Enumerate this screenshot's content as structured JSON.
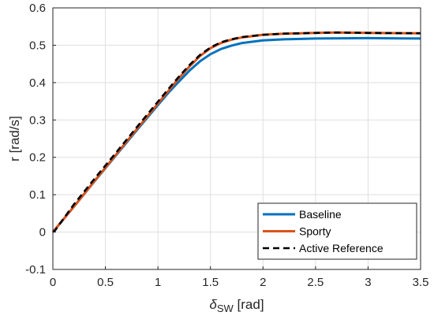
{
  "chart_data": {
    "type": "line",
    "xlabel_symbol": "δ",
    "xlabel_sub": "SW",
    "xlabel_unit": " [rad]",
    "ylabel": "r [rad/s]",
    "xlim": [
      0,
      3.5
    ],
    "ylim": [
      -0.1,
      0.6
    ],
    "xticks": [
      0,
      0.5,
      1,
      1.5,
      2,
      2.5,
      3,
      3.5
    ],
    "yticks": [
      -0.1,
      0,
      0.1,
      0.2,
      0.3,
      0.4,
      0.5,
      0.6
    ],
    "xtick_labels": [
      "0",
      "0.5",
      "1",
      "1.5",
      "2",
      "2.5",
      "3",
      "3.5"
    ],
    "ytick_labels": [
      "-0.1",
      "0",
      "0.1",
      "0.2",
      "0.3",
      "0.4",
      "0.5",
      "0.6"
    ],
    "grid": true,
    "legend_position": "bottom-right",
    "series": [
      {
        "name": "Baseline",
        "color": "#0072BD",
        "style": "solid",
        "x": [
          0,
          0.2,
          0.4,
          0.6,
          0.8,
          1.0,
          1.1,
          1.2,
          1.3,
          1.4,
          1.5,
          1.6,
          1.7,
          1.8,
          2.0,
          2.2,
          2.5,
          3.0,
          3.5
        ],
        "y": [
          0,
          0.068,
          0.137,
          0.205,
          0.273,
          0.34,
          0.373,
          0.403,
          0.432,
          0.457,
          0.476,
          0.49,
          0.499,
          0.506,
          0.513,
          0.516,
          0.518,
          0.519,
          0.518
        ]
      },
      {
        "name": "Sporty",
        "color": "#D95319",
        "style": "solid",
        "x": [
          0,
          0.2,
          0.4,
          0.6,
          0.8,
          1.0,
          1.1,
          1.2,
          1.3,
          1.4,
          1.5,
          1.6,
          1.7,
          1.8,
          2.0,
          2.2,
          2.5,
          2.7,
          3.0,
          3.5
        ],
        "y": [
          0,
          0.068,
          0.138,
          0.207,
          0.276,
          0.344,
          0.378,
          0.412,
          0.443,
          0.471,
          0.492,
          0.506,
          0.515,
          0.521,
          0.528,
          0.531,
          0.533,
          0.534,
          0.533,
          0.532
        ]
      },
      {
        "name": "Active Reference",
        "color": "#000000",
        "style": "dashed",
        "x": [
          0,
          0.02,
          0.2,
          0.4,
          0.6,
          0.8,
          1.0,
          1.1,
          1.2,
          1.3,
          1.4,
          1.5,
          1.6,
          1.7,
          1.8,
          2.0,
          2.2,
          2.5,
          2.7,
          3.0,
          3.5
        ],
        "y": [
          0,
          0.004,
          0.074,
          0.144,
          0.212,
          0.281,
          0.349,
          0.383,
          0.416,
          0.447,
          0.474,
          0.494,
          0.508,
          0.516,
          0.522,
          0.528,
          0.531,
          0.533,
          0.534,
          0.533,
          0.532
        ]
      }
    ]
  }
}
